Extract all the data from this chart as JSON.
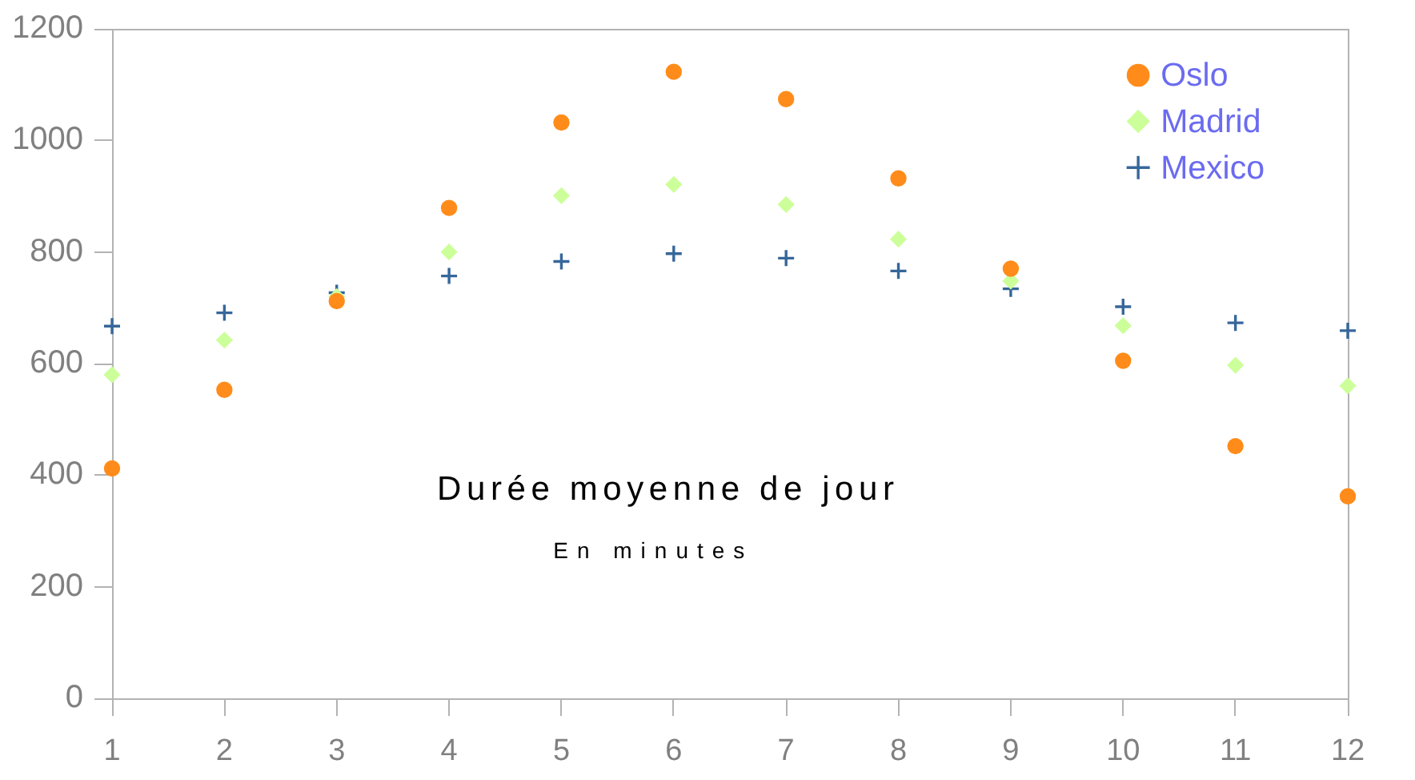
{
  "chart_data": {
    "type": "scatter",
    "title": "Durée moyenne de jour",
    "subtitle": "En minutes",
    "x": [
      1,
      2,
      3,
      4,
      5,
      6,
      7,
      8,
      9,
      10,
      11,
      12
    ],
    "series": [
      {
        "name": "Oslo",
        "color": "#ff8c1a",
        "marker": "circle",
        "values": [
          412,
          553,
          712,
          879,
          1032,
          1123,
          1074,
          932,
          770,
          605,
          452,
          362
        ]
      },
      {
        "name": "Madrid",
        "color": "#ccff99",
        "marker": "diamond",
        "values": [
          580,
          642,
          720,
          800,
          901,
          921,
          885,
          823,
          748,
          668,
          597,
          560
        ]
      },
      {
        "name": "Mexico",
        "color": "#36679a",
        "marker": "cross",
        "values": [
          667,
          691,
          727,
          757,
          783,
          797,
          789,
          766,
          734,
          702,
          673,
          659
        ]
      }
    ],
    "xlim": [
      1,
      12
    ],
    "xticks": [
      1,
      2,
      3,
      4,
      5,
      6,
      7,
      8,
      9,
      10,
      11,
      12
    ],
    "ylim": [
      0,
      1200
    ],
    "yticks": [
      0,
      200,
      400,
      600,
      800,
      1000,
      1200
    ],
    "legend": "top right"
  }
}
